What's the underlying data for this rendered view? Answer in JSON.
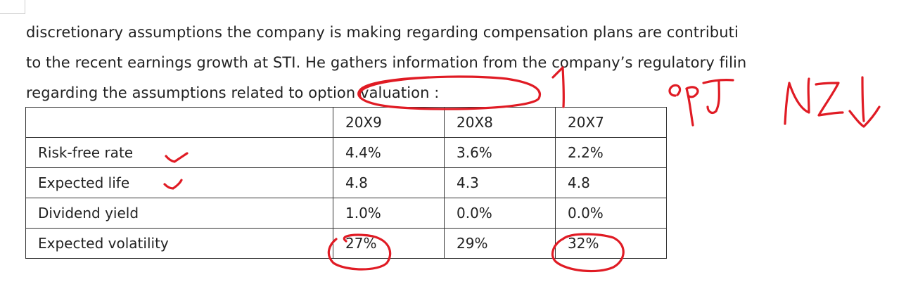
{
  "paragraph": {
    "line1": "discretionary assumptions the company is making regarding compensation plans are contributi",
    "line2": "to the recent earnings growth at STI. He gathers information from the company’s regulatory filin",
    "line3": "regarding the assumptions related to option valuation :"
  },
  "table": {
    "headers": [
      "",
      "20X9",
      "20X8",
      "20X7"
    ],
    "rows": [
      {
        "label": "Risk-free rate",
        "values": [
          "4.4%",
          "3.6%",
          "2.2%"
        ]
      },
      {
        "label": "Expected life",
        "values": [
          "4.8",
          "4.3",
          "4.8"
        ]
      },
      {
        "label": "Dividend yield",
        "values": [
          "1.0%",
          "0.0%",
          "0.0%"
        ]
      },
      {
        "label": "Expected volatility",
        "values": [
          "27%",
          "29%",
          "32%"
        ]
      }
    ]
  },
  "annotations": {
    "ink_color": "#e01b24",
    "handwriting_1": "1",
    "handwriting_2": "opT",
    "handwriting_3": "NI↓"
  }
}
